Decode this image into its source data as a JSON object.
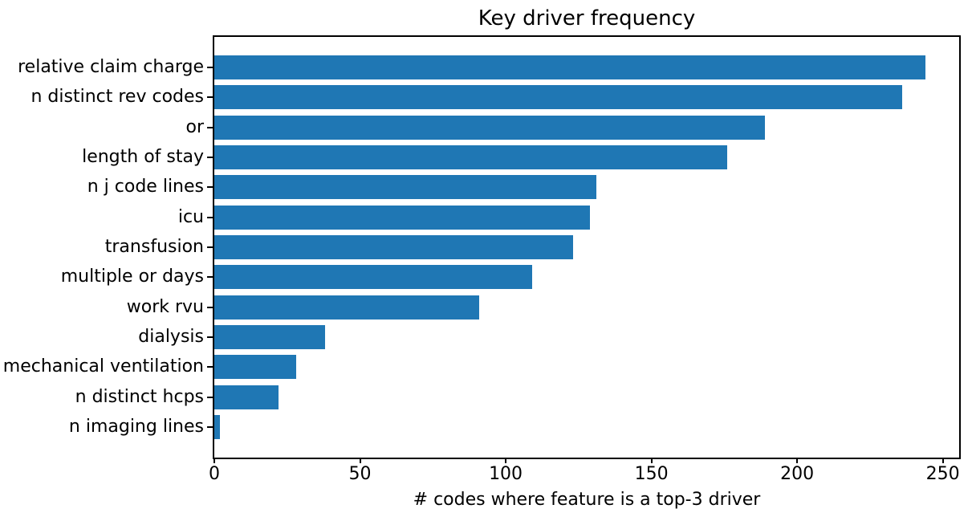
{
  "chart_data": {
    "type": "bar",
    "orientation": "horizontal",
    "title": "Key driver frequency",
    "xlabel": "# codes where feature is a top-3 driver",
    "ylabel": "",
    "categories": [
      "relative claim charge",
      "n distinct rev codes",
      "or",
      "length of stay",
      "n j code lines",
      "icu",
      "transfusion",
      "multiple or days",
      "work rvu",
      "dialysis",
      "mechanical ventilation",
      "n distinct hcps",
      "n imaging lines"
    ],
    "values": [
      244,
      236,
      189,
      176,
      131,
      129,
      123,
      109,
      91,
      38,
      28,
      22,
      2
    ],
    "xticks": [
      0,
      50,
      100,
      150,
      200,
      250
    ],
    "xlim": [
      0,
      255.6
    ],
    "bar_color": "#1f77b4",
    "spine_color": "#000000",
    "text_color": "#000000",
    "background_color": "#ffffff",
    "grid": false,
    "legend": "none"
  }
}
